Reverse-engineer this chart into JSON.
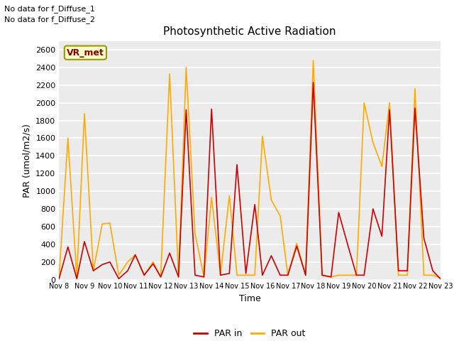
{
  "title": "Photosynthetic Active Radiation",
  "xlabel": "Time",
  "ylabel": "PAR (umol/m2/s)",
  "annotation_line1": "No data for f_Diffuse_1",
  "annotation_line2": "No data for f_Diffuse_2",
  "box_label": "VR_met",
  "legend_labels": [
    "PAR in",
    "PAR out"
  ],
  "par_in_color": "#cc0000",
  "par_out_color": "#ffaa00",
  "background_color": "#ebebeb",
  "ylim": [
    0,
    2700
  ],
  "x_tick_labels": [
    "Nov 8",
    "Nov 9",
    "Nov 10",
    "Nov 11",
    "Nov 12",
    "Nov 13",
    "Nov 14",
    "Nov 15",
    "Nov 16",
    "Nov 17",
    "Nov 18",
    "Nov 19",
    "Nov 20",
    "Nov 21",
    "Nov 22",
    "Nov 23"
  ],
  "par_in_x": [
    8,
    8.35,
    8.7,
    9,
    9.35,
    9.7,
    10,
    10.35,
    10.7,
    11,
    11.35,
    11.7,
    12,
    12.35,
    12.7,
    13,
    13.35,
    13.7,
    14,
    14.35,
    14.7,
    15,
    15.35,
    15.7,
    16,
    16.35,
    16.7,
    17,
    17.35,
    17.7,
    18,
    18.35,
    18.7,
    19,
    19.35,
    19.7,
    20,
    20.35,
    20.7,
    21,
    21.35,
    21.7,
    22,
    22.35,
    22.7,
    23
  ],
  "par_in_y": [
    10,
    370,
    10,
    430,
    100,
    170,
    200,
    10,
    100,
    280,
    50,
    180,
    30,
    300,
    30,
    1920,
    50,
    30,
    1930,
    50,
    70,
    1300,
    70,
    850,
    50,
    270,
    50,
    50,
    380,
    50,
    2230,
    50,
    30,
    760,
    400,
    50,
    50,
    800,
    490,
    1920,
    100,
    100,
    1940,
    470,
    100,
    10
  ],
  "par_out_x": [
    8,
    8.35,
    8.7,
    9,
    9.35,
    9.7,
    10,
    10.35,
    10.7,
    11,
    11.35,
    11.7,
    12,
    12.35,
    12.7,
    13,
    13.35,
    13.7,
    14,
    14.35,
    14.7,
    15,
    15.35,
    15.7,
    16,
    16.35,
    16.7,
    17,
    17.35,
    17.7,
    18,
    18.35,
    18.7,
    19,
    19.35,
    19.7,
    20,
    20.35,
    20.7,
    21,
    21.35,
    21.7,
    22,
    22.35,
    22.7,
    23
  ],
  "par_out_y": [
    20,
    1600,
    20,
    1880,
    100,
    630,
    640,
    50,
    200,
    280,
    50,
    200,
    30,
    2330,
    30,
    2400,
    520,
    30,
    930,
    50,
    950,
    50,
    50,
    50,
    1620,
    900,
    720,
    50,
    410,
    50,
    2480,
    50,
    30,
    50,
    50,
    50,
    2000,
    1550,
    1280,
    2000,
    50,
    50,
    2160,
    50,
    50,
    20
  ]
}
